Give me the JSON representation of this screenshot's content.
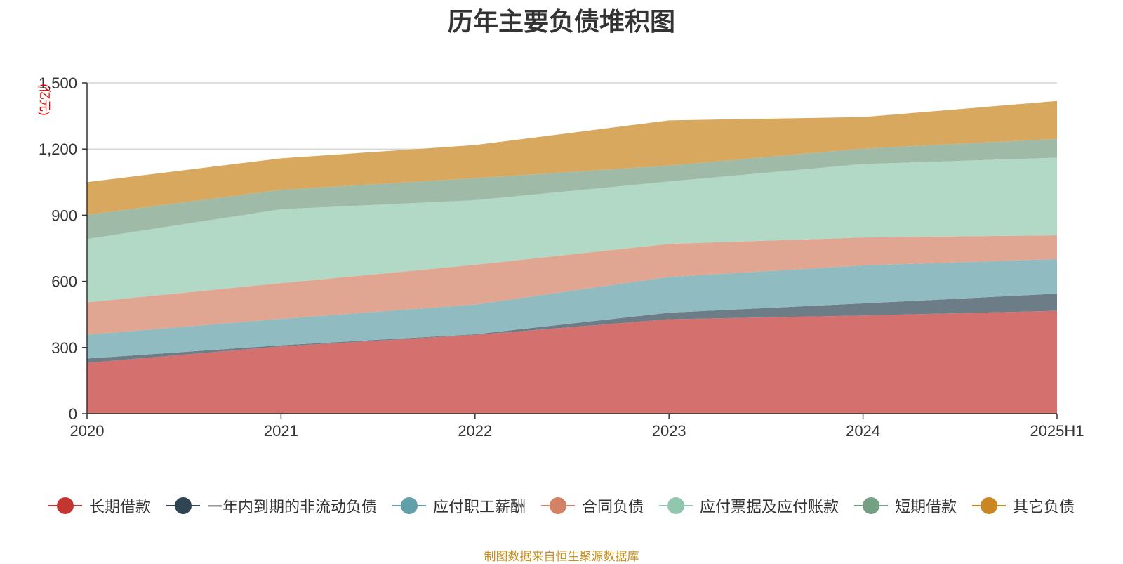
{
  "chart_data": {
    "type": "area",
    "stacked": true,
    "title": "历年主要负债堆积图",
    "unit_label": "(亿元)",
    "categories": [
      "2020",
      "2021",
      "2022",
      "2023",
      "2024",
      "2025H1"
    ],
    "ylim": [
      0,
      1500
    ],
    "yticks": [
      0,
      300,
      600,
      900,
      1200,
      1500
    ],
    "ytick_labels": [
      "0",
      "300",
      "600",
      "900",
      "1,200",
      "1,500"
    ],
    "grid": true,
    "legend_position": "bottom",
    "series": [
      {
        "name": "长期借款",
        "color": "#c23531",
        "fill": "#d4706d",
        "values": [
          230,
          305,
          357,
          428,
          445,
          466
        ]
      },
      {
        "name": "一年内到期的非流动负债",
        "color": "#2f4554",
        "fill": "#6d7d88",
        "values": [
          20,
          5,
          3,
          30,
          55,
          78
        ]
      },
      {
        "name": "应付职工薪酬",
        "color": "#61a0a8",
        "fill": "#90bbc0",
        "values": [
          108,
          120,
          135,
          162,
          172,
          157
        ]
      },
      {
        "name": "合同负债",
        "color": "#d48265",
        "fill": "#e0a692",
        "values": [
          147,
          162,
          180,
          150,
          127,
          108
        ]
      },
      {
        "name": "应付票据及应付账款",
        "color": "#91c7ae",
        "fill": "#b2d8c6",
        "values": [
          287,
          335,
          293,
          283,
          333,
          352
        ]
      },
      {
        "name": "短期借款",
        "color": "#749f83",
        "fill": "#9fbba8",
        "values": [
          110,
          88,
          100,
          72,
          70,
          85
        ]
      },
      {
        "name": "其它负债",
        "color": "#ca8622",
        "fill": "#d8a85f",
        "values": [
          148,
          143,
          150,
          205,
          143,
          172
        ]
      }
    ]
  },
  "source_note": "制图数据来自恒生聚源数据库"
}
